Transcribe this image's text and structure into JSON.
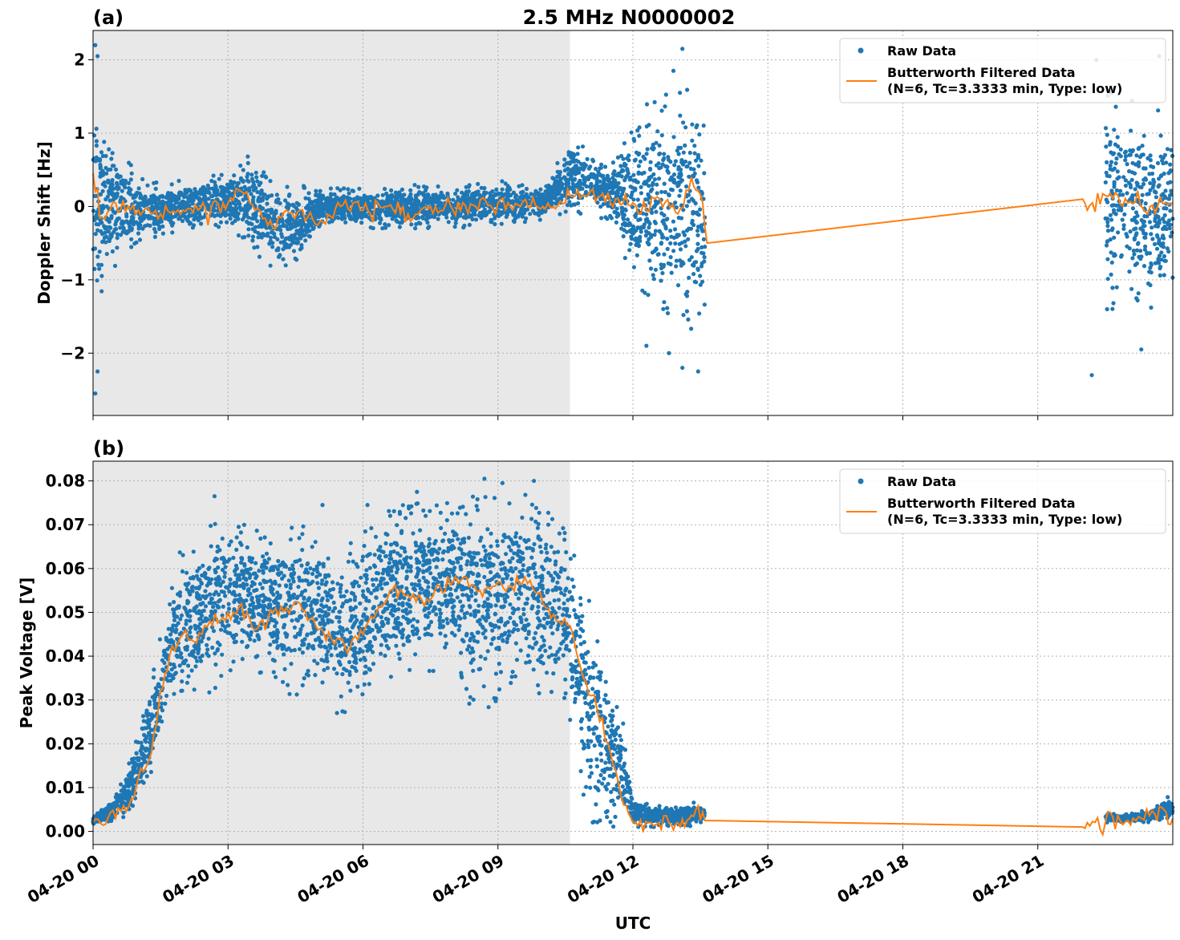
{
  "figure": {
    "title": "2.5 MHz N0000002",
    "xlabel": "UTC"
  },
  "colors": {
    "raw": "#1f77b4",
    "filtered": "#ff7f0e",
    "shade": "#e8e8e8",
    "grid": "#b0b0b0"
  },
  "x_ticks": [
    "04-20 00",
    "04-20 03",
    "04-20 06",
    "04-20 09",
    "04-20 12",
    "04-20 15",
    "04-20 18",
    "04-20 21"
  ],
  "legend": {
    "raw_label": "Raw Data",
    "filtered_label_line1": "Butterworth Filtered Data",
    "filtered_label_line2": "(N=6, Tc=3.3333 min, Type: low)",
    "placement": "top-right"
  },
  "chart_data": [
    {
      "type": "scatter",
      "panel_label": "(a)",
      "ylabel": "Doppler Shift [Hz]",
      "xlim_hours": [
        0,
        24
      ],
      "ylim": [
        -2.85,
        2.4
      ],
      "y_ticks": [
        2,
        1,
        0,
        -1,
        -2
      ],
      "y_tick_labels": [
        "2",
        "1",
        "0",
        "−1",
        "−2"
      ],
      "grid": true,
      "shaded_region_hours": [
        0.15,
        10.6
      ],
      "series": [
        {
          "name": "Raw Data",
          "style": "points",
          "envelope_hours": [
            0,
            0.3,
            1.0,
            1.5,
            2.0,
            3.0,
            3.5,
            4.0,
            4.5,
            5.0,
            6.0,
            7.0,
            8.0,
            9.0,
            10.0,
            10.6,
            11.0,
            11.5,
            11.9,
            12.4,
            13.0,
            13.4,
            13.6,
            22.0,
            22.5,
            23.0,
            23.5,
            24.0
          ],
          "envelope_upper": [
            1.5,
            1.0,
            0.45,
            0.3,
            0.4,
            0.45,
            0.8,
            0.3,
            0.3,
            0.25,
            0.25,
            0.3,
            0.3,
            0.35,
            0.3,
            0.9,
            0.8,
            0.6,
            1.2,
            1.5,
            1.6,
            1.8,
            1.0,
            null,
            1.6,
            1.5,
            1.3,
            1.4
          ],
          "envelope_lower": [
            -1.6,
            -1.0,
            -0.5,
            -0.4,
            -0.35,
            -0.3,
            -0.6,
            -0.9,
            -0.8,
            -0.3,
            -0.3,
            -0.3,
            -0.3,
            -0.25,
            -0.2,
            -0.1,
            -0.1,
            -0.2,
            -0.9,
            -1.4,
            -1.6,
            -1.7,
            -1.4,
            null,
            -1.5,
            -1.4,
            -1.6,
            -1.2
          ],
          "outliers": [
            [
              0.05,
              -2.55
            ],
            [
              0.1,
              -2.25
            ],
            [
              0.05,
              2.2
            ],
            [
              0.1,
              2.05
            ],
            [
              12.3,
              -1.9
            ],
            [
              12.8,
              -2.0
            ],
            [
              13.1,
              -2.2
            ],
            [
              13.45,
              -2.25
            ],
            [
              13.1,
              2.15
            ],
            [
              22.2,
              -2.3
            ],
            [
              22.3,
              2.0
            ],
            [
              23.3,
              -1.95
            ],
            [
              23.7,
              2.05
            ],
            [
              12.9,
              1.85
            ]
          ]
        },
        {
          "name": "Butterworth Filtered Data",
          "style": "line",
          "x_hours": [
            0,
            0.2,
            0.5,
            1.0,
            1.5,
            2.0,
            2.5,
            3.0,
            3.3,
            3.6,
            4.0,
            4.3,
            4.6,
            5.0,
            5.5,
            6.0,
            6.5,
            7.0,
            7.5,
            8.0,
            8.5,
            9.0,
            9.5,
            10.0,
            10.5,
            10.6,
            11.0,
            11.5,
            12.0,
            12.3,
            12.6,
            13.0,
            13.3,
            13.55,
            13.65,
            22.0,
            22.1,
            22.5,
            23.0,
            23.5,
            24.0
          ],
          "y": [
            0.45,
            -0.15,
            0.05,
            -0.05,
            -0.1,
            -0.05,
            -0.05,
            0.05,
            0.2,
            -0.05,
            -0.3,
            -0.05,
            -0.05,
            -0.25,
            0.0,
            -0.05,
            0.0,
            -0.1,
            0.0,
            -0.05,
            0.0,
            0.05,
            0.0,
            0.0,
            0.05,
            0.15,
            0.15,
            0.05,
            0.05,
            -0.05,
            0.1,
            -0.1,
            0.4,
            0.05,
            -0.5,
            0.1,
            -0.05,
            0.15,
            0.05,
            0.0,
            0.05
          ]
        }
      ]
    },
    {
      "type": "scatter",
      "panel_label": "(b)",
      "ylabel": "Peak Voltage [V]",
      "xlim_hours": [
        0,
        24
      ],
      "ylim": [
        -0.003,
        0.0845
      ],
      "y_ticks": [
        0.08,
        0.07,
        0.06,
        0.05,
        0.04,
        0.03,
        0.02,
        0.01,
        0.0
      ],
      "y_tick_labels": [
        "0.08",
        "0.07",
        "0.06",
        "0.05",
        "0.04",
        "0.03",
        "0.02",
        "0.01",
        "0.00"
      ],
      "grid": true,
      "shaded_region_hours": [
        0.15,
        10.6
      ],
      "series": [
        {
          "name": "Raw Data",
          "style": "points",
          "envelope_hours": [
            0,
            0.5,
            0.8,
            1.2,
            1.5,
            1.8,
            2.0,
            2.5,
            3.0,
            4.0,
            4.5,
            5.0,
            5.5,
            6.0,
            6.5,
            7.0,
            7.5,
            8.0,
            8.5,
            9.0,
            9.5,
            10.0,
            10.5,
            11.0,
            11.4,
            11.8,
            12.0,
            12.5,
            13.0,
            13.3,
            13.6,
            22.0,
            22.5,
            23.0,
            23.5,
            23.9,
            24.0
          ],
          "envelope_upper": [
            0.004,
            0.008,
            0.016,
            0.03,
            0.045,
            0.06,
            0.066,
            0.07,
            0.072,
            0.068,
            0.071,
            0.07,
            0.066,
            0.068,
            0.073,
            0.075,
            0.076,
            0.077,
            0.078,
            0.079,
            0.078,
            0.075,
            0.07,
            0.055,
            0.04,
            0.025,
            0.008,
            0.006,
            0.006,
            0.007,
            0.006,
            null,
            0.004,
            0.004,
            0.005,
            0.008,
            0.007
          ],
          "envelope_lower": [
            0.001,
            0.002,
            0.004,
            0.01,
            0.02,
            0.028,
            0.03,
            0.03,
            0.035,
            0.035,
            0.03,
            0.035,
            0.025,
            0.03,
            0.035,
            0.035,
            0.035,
            0.04,
            0.025,
            0.03,
            0.035,
            0.03,
            0.03,
            0.002,
            0.001,
            0.001,
            0.001,
            0.001,
            0.001,
            0.001,
            0.002,
            null,
            0.002,
            0.002,
            0.002,
            0.003,
            0.003
          ],
          "outliers": [
            [
              2.7,
              0.0765
            ],
            [
              7.2,
              0.0775
            ],
            [
              8.7,
              0.0805
            ],
            [
              9.1,
              0.0795
            ],
            [
              9.8,
              0.08
            ],
            [
              5.1,
              0.0745
            ],
            [
              6.1,
              0.0745
            ]
          ]
        },
        {
          "name": "Butterworth Filtered Data",
          "style": "line",
          "x_hours": [
            0,
            0.5,
            0.8,
            1.0,
            1.3,
            1.5,
            1.7,
            2.0,
            2.3,
            2.6,
            3.0,
            3.3,
            3.6,
            4.0,
            4.3,
            4.6,
            5.0,
            5.3,
            5.6,
            6.0,
            6.3,
            6.6,
            7.0,
            7.3,
            7.6,
            8.0,
            8.3,
            8.6,
            9.0,
            9.3,
            9.6,
            10.0,
            10.3,
            10.6,
            10.9,
            11.2,
            11.5,
            11.8,
            12.0,
            12.4,
            12.8,
            13.0,
            13.2,
            13.4,
            13.6,
            22.0,
            22.1,
            22.5,
            23.0,
            23.3,
            23.6,
            23.8,
            24.0
          ],
          "y": [
            0.002,
            0.003,
            0.006,
            0.012,
            0.018,
            0.032,
            0.04,
            0.045,
            0.043,
            0.048,
            0.05,
            0.052,
            0.046,
            0.05,
            0.051,
            0.052,
            0.046,
            0.044,
            0.042,
            0.045,
            0.05,
            0.055,
            0.054,
            0.053,
            0.055,
            0.057,
            0.058,
            0.055,
            0.057,
            0.056,
            0.058,
            0.052,
            0.048,
            0.047,
            0.035,
            0.028,
            0.018,
            0.006,
            0.002,
            0.002,
            0.002,
            0.002,
            0.0025,
            0.005,
            0.0025,
            0.001,
            0.002,
            0.002,
            0.0025,
            0.003,
            0.004,
            0.005,
            0.003
          ]
        }
      ]
    }
  ]
}
